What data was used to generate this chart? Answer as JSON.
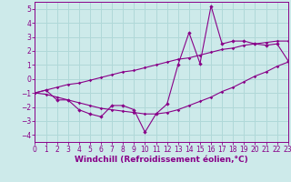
{
  "x": [
    0,
    1,
    2,
    3,
    4,
    5,
    6,
    7,
    8,
    9,
    10,
    11,
    12,
    13,
    14,
    15,
    16,
    17,
    18,
    19,
    20,
    21,
    22,
    23
  ],
  "main_y": [
    -1.0,
    -0.8,
    -1.5,
    -1.5,
    -2.2,
    -2.5,
    -2.7,
    -1.9,
    -1.9,
    -2.2,
    -3.8,
    -2.5,
    -1.8,
    1.0,
    3.3,
    1.1,
    5.2,
    2.5,
    2.7,
    2.7,
    2.5,
    2.4,
    2.5,
    1.3
  ],
  "upper_y": [
    -1.0,
    -0.8,
    -0.6,
    -0.4,
    -0.3,
    -0.1,
    0.1,
    0.3,
    0.5,
    0.6,
    0.8,
    1.0,
    1.2,
    1.4,
    1.5,
    1.7,
    1.9,
    2.1,
    2.2,
    2.4,
    2.5,
    2.6,
    2.7,
    2.7
  ],
  "lower_y": [
    -1.0,
    -1.1,
    -1.3,
    -1.5,
    -1.7,
    -1.9,
    -2.1,
    -2.2,
    -2.3,
    -2.4,
    -2.5,
    -2.5,
    -2.4,
    -2.2,
    -1.9,
    -1.6,
    -1.3,
    -0.9,
    -0.6,
    -0.2,
    0.2,
    0.5,
    0.9,
    1.2
  ],
  "color": "#880088",
  "bg_color": "#cdeaea",
  "grid_color": "#b0d8d8",
  "ylim": [
    -4.5,
    5.5
  ],
  "yticks": [
    -4,
    -3,
    -2,
    -1,
    0,
    1,
    2,
    3,
    4,
    5
  ],
  "xlim": [
    0,
    23
  ],
  "xlabel": "Windchill (Refroidissement éolien,°C)",
  "tick_fontsize": 5.5,
  "label_fontsize": 6.5
}
